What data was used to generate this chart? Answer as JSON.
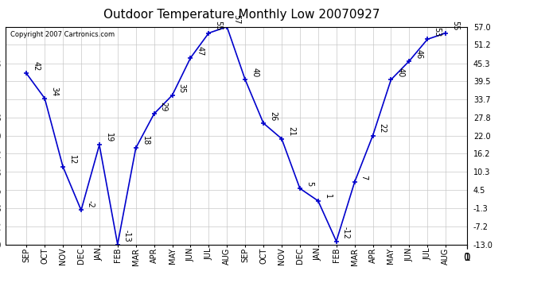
{
  "title": "Outdoor Temperature Monthly Low 20070927",
  "copyright": "Copyright 2007 Cartronics.com",
  "categories": [
    "SEP",
    "OCT",
    "NOV",
    "DEC",
    "JAN",
    "FEB",
    "MAR",
    "APR",
    "MAY",
    "JUN",
    "JUL",
    "AUG",
    "SEP",
    "OCT",
    "NOV",
    "DEC",
    "JAN",
    "FEB",
    "MAR",
    "APR",
    "MAY",
    "JUN",
    "JUL",
    "AUG"
  ],
  "values": [
    42,
    34,
    12,
    -2,
    19,
    -13,
    18,
    29,
    35,
    47,
    55,
    57,
    40,
    26,
    21,
    5,
    1,
    -12,
    7,
    22,
    40,
    46,
    53,
    55
  ],
  "line_color": "#0000cc",
  "bg_color": "#ffffff",
  "grid_color": "#c8c8c8",
  "ylim_min": -13.0,
  "ylim_max": 57.0,
  "yticks": [
    -13.0,
    -7.2,
    -1.3,
    4.5,
    10.3,
    16.2,
    22.0,
    27.8,
    33.7,
    39.5,
    45.3,
    51.2,
    57.0
  ],
  "title_fontsize": 11,
  "tick_fontsize": 7,
  "annot_fontsize": 7,
  "copyright_fontsize": 6
}
